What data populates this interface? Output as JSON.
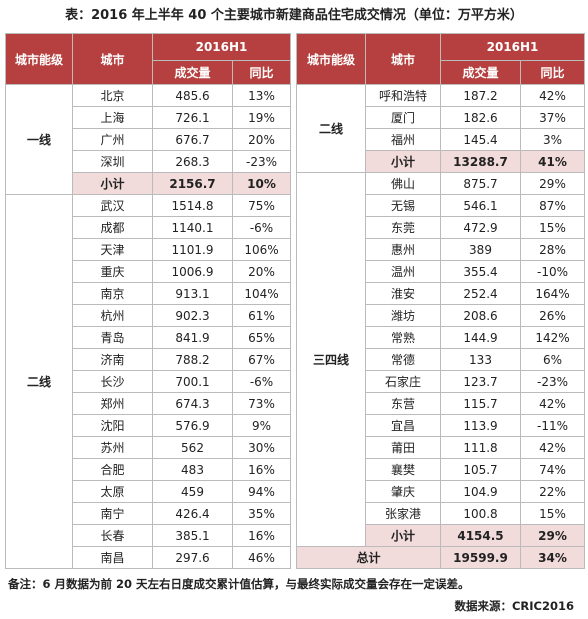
{
  "title": "表：2016 年上半年 40 个主要城市新建商品住宅成交情况（单位：万平方米）",
  "headers": {
    "tier": "城市能级",
    "city": "城市",
    "period": "2016H1",
    "volume": "成交量",
    "yoy": "同比"
  },
  "left": {
    "groups": [
      {
        "tier": "一线",
        "rows": [
          [
            "北京",
            "485.6",
            "13%"
          ],
          [
            "上海",
            "726.1",
            "19%"
          ],
          [
            "广州",
            "676.7",
            "20%"
          ],
          [
            "深圳",
            "268.3",
            "-23%"
          ]
        ],
        "subtotal": [
          "小计",
          "2156.7",
          "10%"
        ]
      },
      {
        "tier": "二线",
        "rows": [
          [
            "武汉",
            "1514.8",
            "75%"
          ],
          [
            "成都",
            "1140.1",
            "-6%"
          ],
          [
            "天津",
            "1101.9",
            "106%"
          ],
          [
            "重庆",
            "1006.9",
            "20%"
          ],
          [
            "南京",
            "913.1",
            "104%"
          ],
          [
            "杭州",
            "902.3",
            "61%"
          ],
          [
            "青岛",
            "841.9",
            "65%"
          ],
          [
            "济南",
            "788.2",
            "67%"
          ],
          [
            "长沙",
            "700.1",
            "-6%"
          ],
          [
            "郑州",
            "674.3",
            "73%"
          ],
          [
            "沈阳",
            "576.9",
            "9%"
          ],
          [
            "苏州",
            "562",
            "30%"
          ],
          [
            "合肥",
            "483",
            "16%"
          ],
          [
            "太原",
            "459",
            "94%"
          ],
          [
            "南宁",
            "426.4",
            "35%"
          ],
          [
            "长春",
            "385.1",
            "16%"
          ],
          [
            "南昌",
            "297.6",
            "46%"
          ]
        ]
      }
    ]
  },
  "right": {
    "groups": [
      {
        "tier": "二线",
        "rows": [
          [
            "呼和浩特",
            "187.2",
            "42%"
          ],
          [
            "厦门",
            "182.6",
            "37%"
          ],
          [
            "福州",
            "145.4",
            "3%"
          ]
        ],
        "subtotal": [
          "小计",
          "13288.7",
          "41%"
        ]
      },
      {
        "tier": "三四线",
        "rows": [
          [
            "佛山",
            "875.7",
            "29%"
          ],
          [
            "无锡",
            "546.1",
            "87%"
          ],
          [
            "东莞",
            "472.9",
            "15%"
          ],
          [
            "惠州",
            "389",
            "28%"
          ],
          [
            "温州",
            "355.4",
            "-10%"
          ],
          [
            "淮安",
            "252.4",
            "164%"
          ],
          [
            "潍坊",
            "208.6",
            "26%"
          ],
          [
            "常熟",
            "144.9",
            "142%"
          ],
          [
            "常德",
            "133",
            "6%"
          ],
          [
            "石家庄",
            "123.7",
            "-23%"
          ],
          [
            "东营",
            "115.7",
            "42%"
          ],
          [
            "宜昌",
            "113.9",
            "-11%"
          ],
          [
            "莆田",
            "111.8",
            "42%"
          ],
          [
            "襄樊",
            "105.7",
            "74%"
          ],
          [
            "肇庆",
            "104.9",
            "22%"
          ],
          [
            "张家港",
            "100.8",
            "15%"
          ]
        ],
        "subtotal": [
          "小计",
          "4154.5",
          "29%"
        ]
      }
    ],
    "total": [
      "总计",
      "19599.9",
      "34%"
    ]
  },
  "note": "备注：6 月数据为前 20 天左右日度成交累计值估算，与最终实际成交量会存在一定误差。",
  "source": "数据来源：CRIC2016"
}
